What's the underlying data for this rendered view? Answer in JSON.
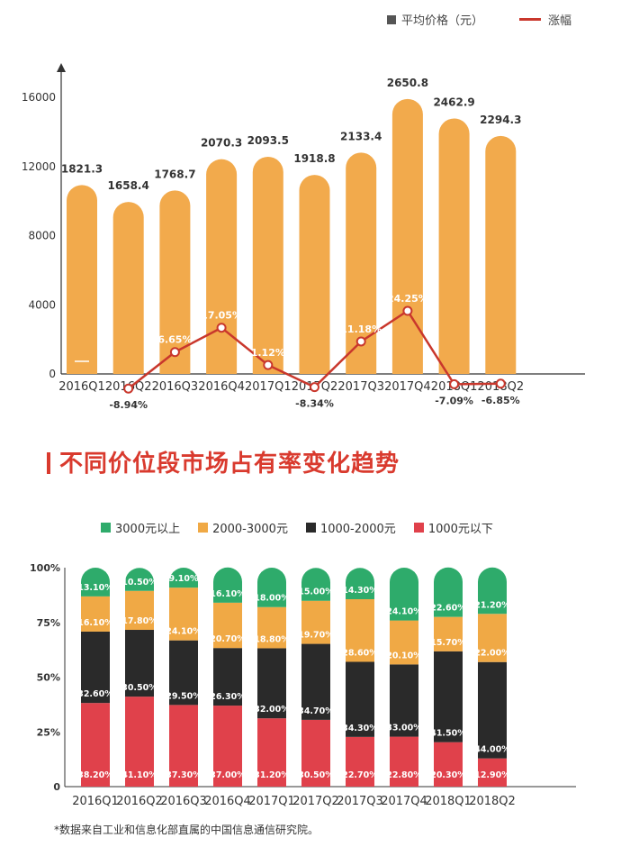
{
  "legend1": {
    "bar_label": "平均价格（元）",
    "line_label": "涨幅"
  },
  "section_title": "不同价位段市场占有率变化趋势",
  "legend2": [
    {
      "label": "3000元以上",
      "color": "#2eab6b"
    },
    {
      "label": "2000-3000元",
      "color": "#f0a945"
    },
    {
      "label": "1000-2000元",
      "color": "#2a2a2a"
    },
    {
      "label": "1000元以下",
      "color": "#e0414b"
    }
  ],
  "footnote": "*数据来自工业和信息化部直属的中国信息通信研究院。",
  "chart_data": [
    {
      "type": "bar",
      "categories": [
        "2016Q1",
        "2016Q2",
        "2016Q3",
        "2016Q4",
        "2017Q1",
        "2017Q2",
        "2017Q3",
        "2017Q4",
        "2018Q1",
        "2018Q2"
      ],
      "series": [
        {
          "name": "平均价格（元）",
          "type": "bar",
          "color": "#f2aa4c",
          "values": [
            1821.3,
            1658.4,
            1768.7,
            2070.3,
            2093.5,
            1918.8,
            2133.4,
            2650.8,
            2462.9,
            2294.3
          ],
          "labels": [
            "1821.3",
            "1658.4",
            "1768.7",
            "2070.3",
            "2093.5",
            "1918.8",
            "2133.4",
            "2650.8",
            "2462.9",
            "2294.3"
          ]
        },
        {
          "name": "涨幅",
          "type": "line",
          "color": "#c9372c",
          "values": [
            null,
            -8.94,
            6.65,
            17.05,
            1.12,
            -8.34,
            11.18,
            24.25,
            -7.09,
            -6.85
          ],
          "labels": [
            "",
            "-8.94%",
            "6.65%",
            "17.05%",
            "1.12%",
            "-8.34%",
            "11.18%",
            "24.25%",
            "-7.09%",
            "-6.85%"
          ]
        }
      ],
      "yticks": [
        "0",
        "4000",
        "8000",
        "12000",
        "16000"
      ],
      "ylim": [
        0,
        16000
      ]
    },
    {
      "type": "bar",
      "stacked": true,
      "categories": [
        "2016Q1",
        "2016Q2",
        "2016Q3",
        "2016Q4",
        "2017Q1",
        "2017Q2",
        "2017Q3",
        "2017Q4",
        "2018Q1",
        "2018Q2"
      ],
      "series": [
        {
          "name": "1000元以下",
          "color": "#e0414b",
          "values": [
            38.2,
            41.1,
            37.3,
            37.0,
            31.2,
            30.5,
            22.7,
            22.8,
            20.3,
            12.9
          ],
          "labels": [
            "38.20%",
            "41.10%",
            "37.30%",
            "37.00%",
            "31.20%",
            "30.50%",
            "22.70%",
            "22.80%",
            "20.30%",
            "12.90%"
          ]
        },
        {
          "name": "1000-2000元",
          "color": "#2a2a2a",
          "values": [
            32.6,
            30.5,
            29.5,
            26.3,
            32.0,
            34.7,
            34.3,
            33.0,
            41.5,
            44.0
          ],
          "labels": [
            "32.60%",
            "30.50%",
            "29.50%",
            "26.30%",
            "32.00%",
            "34.70%",
            "34.30%",
            "33.00%",
            "41.50%",
            "44.00%"
          ]
        },
        {
          "name": "2000-3000元",
          "color": "#f0a945",
          "values": [
            16.1,
            17.8,
            24.1,
            20.7,
            18.8,
            19.7,
            28.6,
            20.1,
            15.7,
            22.0
          ],
          "labels": [
            "16.10%",
            "17.80%",
            "24.10%",
            "20.70%",
            "18.80%",
            "19.70%",
            "28.60%",
            "20.10%",
            "15.70%",
            "22.00%"
          ]
        },
        {
          "name": "3000元以上",
          "color": "#2eab6b",
          "values": [
            13.1,
            10.5,
            9.1,
            16.1,
            18.0,
            15.0,
            14.3,
            24.1,
            22.6,
            21.2
          ],
          "labels": [
            "13.10%",
            "10.50%",
            "9.10%",
            "16.10%",
            "18.00%",
            "15.00%",
            "14.30%",
            "24.10%",
            "22.60%",
            "21.20%"
          ]
        }
      ],
      "yticks": [
        "0",
        "25%",
        "50%",
        "75%",
        "100%"
      ],
      "ylim": [
        0,
        100
      ]
    }
  ]
}
